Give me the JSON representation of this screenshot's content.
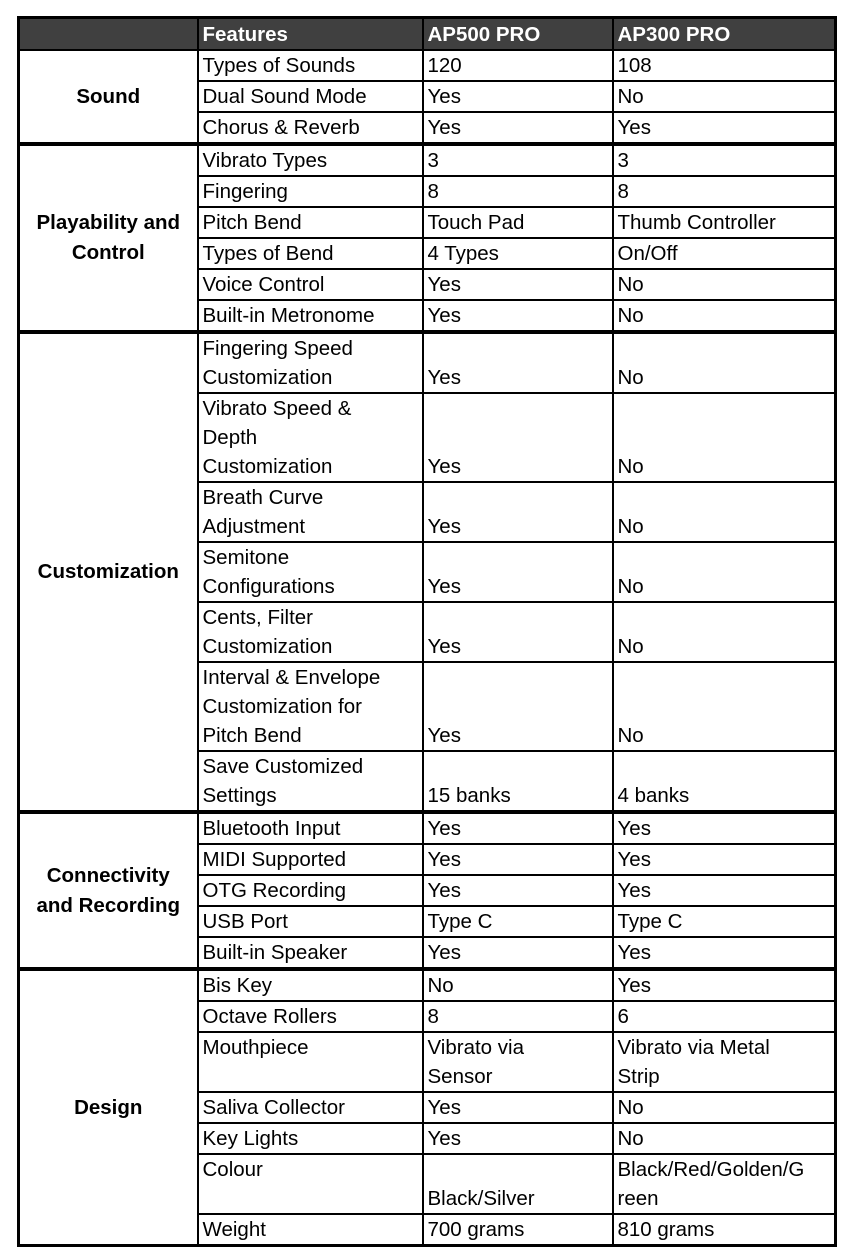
{
  "header": [
    "",
    "Features",
    "AP500 PRO",
    "AP300 PRO"
  ],
  "groups": [
    {
      "name": "Sound",
      "rows": [
        [
          "Types of Sounds",
          "120",
          "108"
        ],
        [
          "Dual Sound Mode",
          "Yes",
          "No"
        ],
        [
          "Chorus & Reverb",
          "Yes",
          "Yes"
        ]
      ]
    },
    {
      "name": "Playability and\nControl",
      "rows": [
        [
          "Vibrato Types",
          "3",
          "3"
        ],
        [
          "Fingering",
          "8",
          "8"
        ],
        [
          "Pitch Bend",
          "Touch Pad",
          "Thumb Controller"
        ],
        [
          "Types of Bend",
          "4 Types",
          "On/Off"
        ],
        [
          "Voice Control",
          "Yes",
          "No"
        ],
        [
          "Built-in Metronome",
          "Yes",
          "No"
        ]
      ]
    },
    {
      "name": "Customization",
      "rows": [
        [
          "Fingering Speed\nCustomization",
          "Yes",
          "No"
        ],
        [
          "Vibrato Speed &\nDepth\nCustomization",
          "Yes",
          "No"
        ],
        [
          "Breath Curve\nAdjustment",
          "Yes",
          "No"
        ],
        [
          "Semitone\nConfigurations",
          "Yes",
          "No"
        ],
        [
          "Cents, Filter\nCustomization",
          "Yes",
          "No"
        ],
        [
          "Interval & Envelope\nCustomization for\nPitch Bend",
          "Yes",
          "No"
        ],
        [
          "Save Customized\nSettings",
          "15 banks",
          "4 banks"
        ]
      ]
    },
    {
      "name": "Connectivity\nand Recording",
      "rows": [
        [
          "Bluetooth Input",
          "Yes",
          "Yes"
        ],
        [
          "MIDI Supported",
          "Yes",
          "Yes"
        ],
        [
          "OTG Recording",
          "Yes",
          "Yes"
        ],
        [
          "USB Port",
          "Type C",
          "Type C"
        ],
        [
          "Built-in Speaker",
          "Yes",
          "Yes"
        ]
      ]
    },
    {
      "name": "Design",
      "rows": [
        [
          "Bis Key",
          "No",
          "Yes"
        ],
        [
          "Octave Rollers",
          "8",
          "6"
        ],
        [
          "Mouthpiece",
          "Vibrato via\nSensor",
          "Vibrato via Metal\nStrip"
        ],
        [
          "Saliva Collector",
          "Yes",
          "No"
        ],
        [
          "Key Lights",
          "Yes",
          "No"
        ],
        [
          "Colour",
          "Black/Silver",
          "Black/Red/Golden/G\nreen"
        ],
        [
          "Weight",
          "700 grams",
          "810 grams"
        ]
      ]
    }
  ]
}
